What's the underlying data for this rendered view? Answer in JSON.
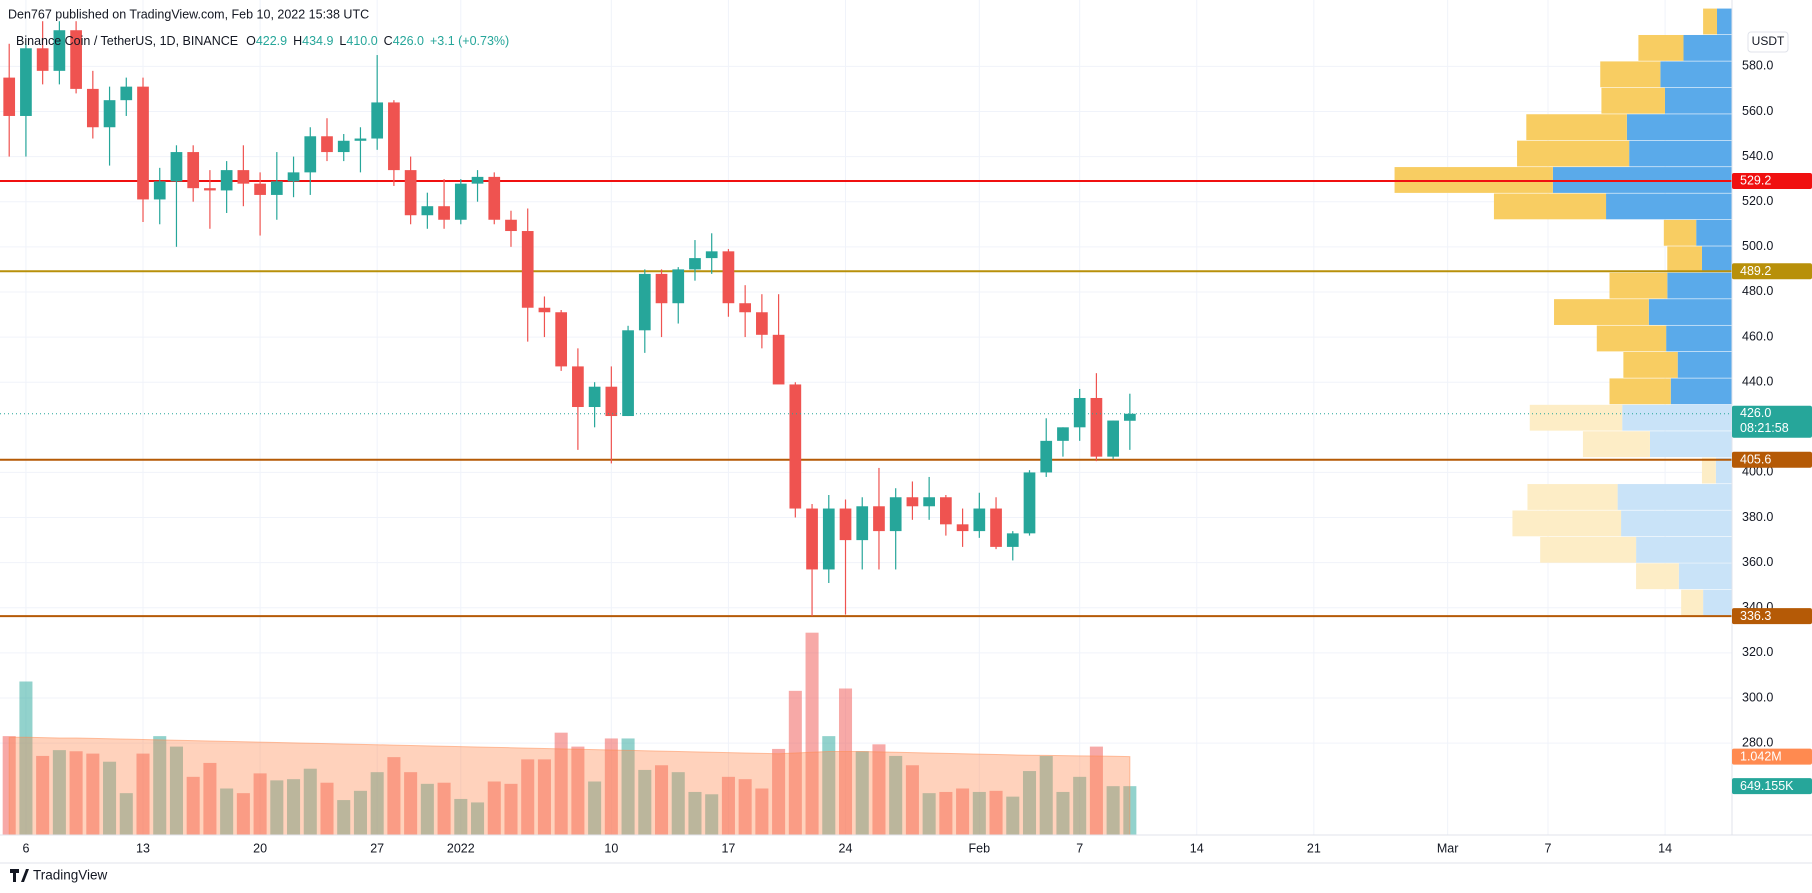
{
  "chart_data": {
    "type": "candlestick",
    "published": "Den767 published on TradingView.com, Feb 10, 2022 15:38 UTC",
    "title": "Binance Coin / TetherUS, 1D, BINANCE",
    "legend_letters": [
      "O",
      "H",
      "L",
      "C"
    ],
    "legend_values": [
      "422.9",
      "434.9",
      "410.0",
      "426.0"
    ],
    "change_text": "+3.1 (+0.73%)",
    "currency": "USDT",
    "footer": "TradingView",
    "x": [
      "2021-12-05",
      "2021-12-06",
      "2021-12-07",
      "2021-12-08",
      "2021-12-09",
      "2021-12-10",
      "2021-12-11",
      "2021-12-12",
      "2021-12-13",
      "2021-12-14",
      "2021-12-15",
      "2021-12-16",
      "2021-12-17",
      "2021-12-18",
      "2021-12-19",
      "2021-12-20",
      "2021-12-21",
      "2021-12-22",
      "2021-12-23",
      "2021-12-24",
      "2021-12-25",
      "2021-12-26",
      "2021-12-27",
      "2021-12-28",
      "2021-12-29",
      "2021-12-30",
      "2021-12-31",
      "2022-01-01",
      "2022-01-02",
      "2022-01-03",
      "2022-01-04",
      "2022-01-05",
      "2022-01-06",
      "2022-01-07",
      "2022-01-08",
      "2022-01-09",
      "2022-01-10",
      "2022-01-11",
      "2022-01-12",
      "2022-01-13",
      "2022-01-14",
      "2022-01-15",
      "2022-01-16",
      "2022-01-17",
      "2022-01-18",
      "2022-01-19",
      "2022-01-20",
      "2022-01-21",
      "2022-01-22",
      "2022-01-23",
      "2022-01-24",
      "2022-01-25",
      "2022-01-26",
      "2022-01-27",
      "2022-01-28",
      "2022-01-29",
      "2022-01-30",
      "2022-01-31",
      "2022-02-01",
      "2022-02-02",
      "2022-02-03",
      "2022-02-04",
      "2022-02-05",
      "2022-02-06",
      "2022-02-07",
      "2022-02-08",
      "2022-02-09",
      "2022-02-10"
    ],
    "open": [
      575,
      558,
      588,
      578,
      596,
      570,
      553,
      565,
      571,
      521,
      529,
      542,
      526,
      525,
      534,
      528,
      523,
      529,
      533,
      549,
      542,
      547,
      548,
      564,
      534,
      514,
      518,
      512,
      528,
      531,
      512,
      507,
      473,
      471,
      447,
      429,
      438,
      425,
      463,
      488,
      475,
      490,
      495,
      498,
      475,
      471,
      461,
      439,
      384,
      357,
      384,
      370,
      385,
      374,
      389,
      385,
      389,
      377,
      374,
      384,
      367,
      373,
      400,
      414,
      420,
      433,
      407,
      422.9
    ],
    "high": [
      590,
      590,
      600,
      600,
      600,
      578,
      571,
      575,
      575,
      535,
      545,
      545,
      534,
      538,
      545,
      533,
      542,
      540,
      553,
      557,
      550,
      553,
      585,
      565,
      540,
      524,
      530,
      530,
      534,
      533,
      516,
      517,
      478,
      472,
      455,
      440,
      447,
      465,
      490,
      490,
      491,
      503,
      506,
      499,
      483,
      479,
      479,
      440,
      386,
      390,
      388,
      389,
      402,
      393,
      396,
      398,
      390,
      384,
      391,
      389,
      374,
      401,
      424,
      420,
      437,
      444,
      423,
      434.9
    ],
    "low": [
      540,
      540,
      572,
      572,
      568,
      548,
      536,
      558,
      511,
      510,
      500,
      520,
      508,
      515,
      518,
      505,
      512,
      522,
      523,
      538,
      538,
      533,
      543,
      527,
      510,
      508,
      508,
      510,
      520,
      510,
      500,
      458,
      460,
      445,
      410,
      420,
      404,
      425,
      453,
      460,
      466,
      485,
      488,
      469,
      460,
      455,
      441,
      380,
      336.3,
      351,
      337,
      357,
      357,
      357,
      379,
      379,
      372,
      367,
      371,
      366,
      361,
      372,
      398,
      407,
      414,
      405,
      406,
      410.0
    ],
    "close": [
      558,
      588,
      578,
      596,
      570,
      553,
      565,
      571,
      521,
      529,
      542,
      526,
      525,
      534,
      528,
      523,
      529,
      533,
      549,
      542,
      547,
      548,
      564,
      534,
      514,
      518,
      512,
      528,
      531,
      512,
      507,
      473,
      471,
      447,
      429,
      438,
      425,
      463,
      488,
      475,
      490,
      495,
      498,
      475,
      471,
      461,
      439,
      384,
      357,
      384,
      370,
      385,
      374,
      389,
      385,
      389,
      377,
      374,
      384,
      367,
      373,
      400,
      414,
      420,
      433,
      407,
      423,
      426
    ],
    "up_color": "#26a69a",
    "down_color": "#ef5350",
    "volume": {
      "values": [
        1314,
        2040,
        1051,
        1128,
        1113,
        1082,
        974,
        556,
        1082,
        1314,
        1175,
        773,
        958,
        618,
        556,
        819,
        726,
        742,
        881,
        695,
        464,
        587,
        835,
        1035,
        835,
        680,
        695,
        479,
        433,
        711,
        680,
        1005,
        1005,
        1360,
        1175,
        711,
        1283,
        1283,
        865,
        927,
        835,
        572,
        541,
        773,
        742,
        618,
        1144,
        1916,
        2689,
        1314,
        1947,
        1113,
        1205,
        1051,
        927,
        556,
        572,
        618,
        572,
        587,
        510,
        850,
        1051,
        572,
        773,
        1175,
        649,
        649.155
      ],
      "last_label": "649.155K",
      "ma_values": [
        1300,
        1300,
        1295,
        1290,
        1290,
        1285,
        1280,
        1275,
        1270,
        1265,
        1260,
        1255,
        1250,
        1245,
        1240,
        1235,
        1230,
        1225,
        1220,
        1215,
        1210,
        1205,
        1200,
        1195,
        1190,
        1185,
        1180,
        1175,
        1170,
        1165,
        1160,
        1155,
        1150,
        1145,
        1140,
        1135,
        1130,
        1125,
        1120,
        1115,
        1110,
        1105,
        1100,
        1095,
        1090,
        1085,
        1080,
        1090,
        1100,
        1110,
        1110,
        1110,
        1105,
        1100,
        1095,
        1090,
        1085,
        1080,
        1075,
        1070,
        1065,
        1060,
        1058,
        1055,
        1052,
        1050,
        1046,
        1042
      ],
      "ma_last_label": "1.042M",
      "ma_color": "#ff8a50"
    },
    "volume_profile": {
      "low": 336.3,
      "high": 605.6,
      "value_area_low": 430.0,
      "up": [
        25,
        46,
        83,
        96,
        99,
        14,
        71,
        95,
        53,
        47,
        57,
        72,
        56,
        26,
        31,
        109,
        155,
        89,
        91,
        58,
        62,
        42,
        13
      ],
      "down": [
        19,
        37,
        83,
        94,
        78,
        12,
        58,
        80,
        53,
        47,
        60,
        82,
        50,
        30,
        28,
        97,
        137,
        97,
        87,
        55,
        52,
        39,
        12
      ],
      "up_color": "#5aaaea",
      "down_color": "#f8cd62",
      "up_color_faint": "#c9e3f8",
      "down_color_faint": "#fdedc6"
    },
    "levels": [
      {
        "value": 529.2,
        "color": "#f01010"
      },
      {
        "value": 489.2,
        "color": "#b8900a"
      },
      {
        "value": 405.6,
        "color": "#b55a06"
      },
      {
        "value": 336.3,
        "color": "#b55a06"
      }
    ],
    "last_price": {
      "value": 426,
      "label": "426.0"
    },
    "countdown": "08:21:58",
    "xlim": [
      "2021-12-05",
      "2022-03-18"
    ],
    "xticks": [
      {
        "value": "2021-12-06",
        "label": "6"
      },
      {
        "value": "2021-12-13",
        "label": "13"
      },
      {
        "value": "2021-12-20",
        "label": "20"
      },
      {
        "value": "2021-12-27",
        "label": "27"
      },
      {
        "value": "2022-01-01",
        "label": "2022"
      },
      {
        "value": "2022-01-10",
        "label": "10"
      },
      {
        "value": "2022-01-17",
        "label": "17"
      },
      {
        "value": "2022-01-24",
        "label": "24"
      },
      {
        "value": "2022-02-01",
        "label": "Feb"
      },
      {
        "value": "2022-02-07",
        "label": "7"
      },
      {
        "value": "2022-02-14",
        "label": "14"
      },
      {
        "value": "2022-02-21",
        "label": "21"
      },
      {
        "value": "2022-03-01",
        "label": "Mar"
      },
      {
        "value": "2022-03-07",
        "label": "7"
      },
      {
        "value": "2022-03-14",
        "label": "14"
      }
    ],
    "ylim": [
      239.3,
      609.4
    ],
    "yticks": [
      {
        "value": 280,
        "label": "280.0"
      },
      {
        "value": 300,
        "label": "300.0"
      },
      {
        "value": 320,
        "label": "320.0"
      },
      {
        "value": 340,
        "label": "340.0"
      },
      {
        "value": 360,
        "label": "360.0"
      },
      {
        "value": 380,
        "label": "380.0"
      },
      {
        "value": 400,
        "label": "400.0"
      },
      {
        "value": 440,
        "label": "440.0"
      },
      {
        "value": 460,
        "label": "460.0"
      },
      {
        "value": 480,
        "label": "480.0"
      },
      {
        "value": 500,
        "label": "500.0"
      },
      {
        "value": 520,
        "label": "520.0"
      },
      {
        "value": 540,
        "label": "540.0"
      },
      {
        "value": 560,
        "label": "560.0"
      },
      {
        "value": 580,
        "label": "580.0"
      }
    ],
    "grid": true
  }
}
